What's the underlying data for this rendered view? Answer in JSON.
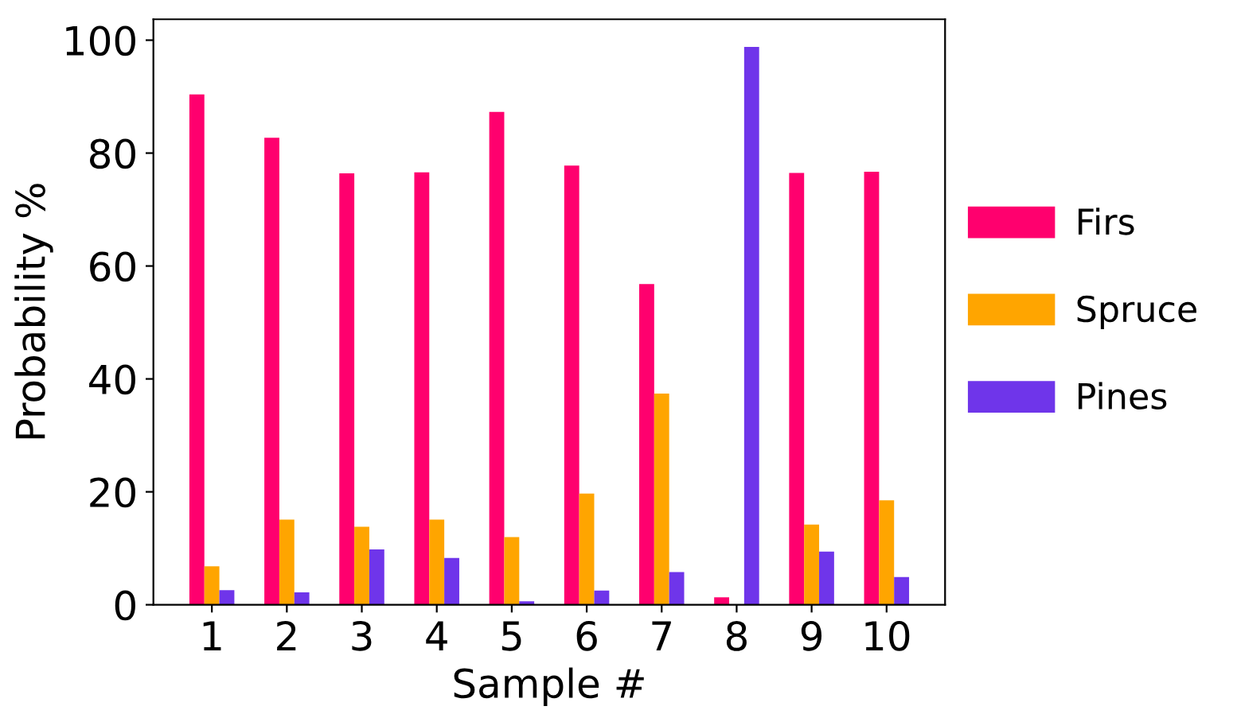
{
  "chart_data": {
    "type": "bar",
    "xlabel": "Sample #",
    "ylabel": "Probability %",
    "categories": [
      "1",
      "2",
      "3",
      "4",
      "5",
      "6",
      "7",
      "8",
      "9",
      "10"
    ],
    "series": [
      {
        "name": "Firs",
        "color": "#ff006e",
        "values": [
          90.4,
          82.7,
          76.4,
          76.6,
          87.3,
          77.8,
          56.8,
          1.3,
          76.5,
          76.7
        ]
      },
      {
        "name": "Spruce",
        "color": "#ffa500",
        "values": [
          6.8,
          15.1,
          13.8,
          15.1,
          12.0,
          19.7,
          37.4,
          0,
          14.2,
          18.5
        ]
      },
      {
        "name": "Pines",
        "color": "#6f35ea",
        "values": [
          2.6,
          2.2,
          9.8,
          8.3,
          0.6,
          2.5,
          5.8,
          98.8,
          9.4,
          4.9
        ]
      }
    ],
    "ylim": [
      0,
      103.7
    ],
    "yticks": [
      0,
      20,
      40,
      60,
      80,
      100
    ],
    "grid": false,
    "legend": "right"
  }
}
